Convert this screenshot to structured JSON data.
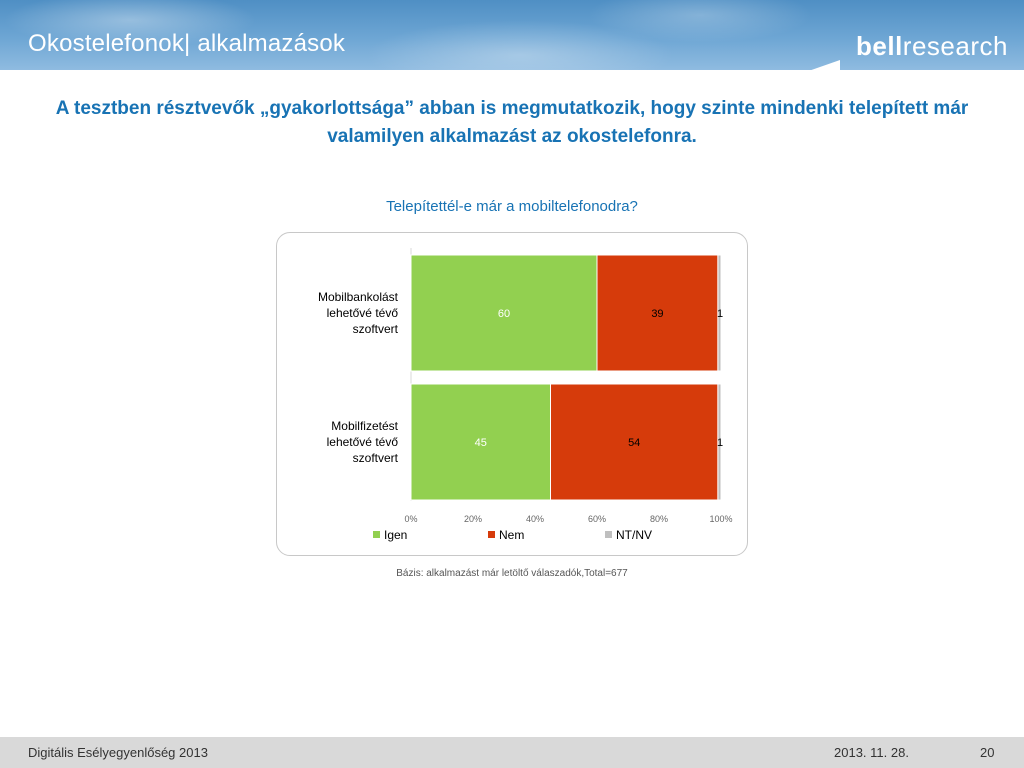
{
  "header": {
    "title": "Okostelefonok| alkalmazások",
    "logo_left": "bell",
    "logo_right": "research"
  },
  "headline": "A tesztben résztvevők „gyakorlottsága” abban is megmutatkozik, hogy szinte mindenki telepített már valamilyen alkalmazást az okostelefonra.",
  "chart_data": {
    "type": "bar",
    "orientation": "horizontal",
    "stacked": true,
    "title": "Telepítettél-e már a mobiltelefonodra?",
    "categories": [
      [
        "Mobilbankolást",
        "lehetővé tévő",
        "szoftvert"
      ],
      [
        "Mobilfizetést",
        "lehetővé tévő",
        "szoftvert"
      ]
    ],
    "series": [
      {
        "name": "Igen",
        "values": [
          60,
          45
        ],
        "color": "#92d050"
      },
      {
        "name": "Nem",
        "values": [
          39,
          54
        ],
        "color": "#d63b0b"
      },
      {
        "name": "NT/NV",
        "values": [
          1,
          1
        ],
        "color": "#bfbfbf"
      }
    ],
    "xlim": [
      0,
      100
    ],
    "xticks": [
      "0%",
      "20%",
      "40%",
      "60%",
      "80%",
      "100%"
    ],
    "legend": "bottom",
    "grid": false
  },
  "note": "Bázis: alkalmazást már letöltő válaszadók,Total=677",
  "footer": {
    "left": "Digitális Esélyegyenlőség 2013",
    "date": "2013. 11. 28.",
    "page": "20"
  }
}
